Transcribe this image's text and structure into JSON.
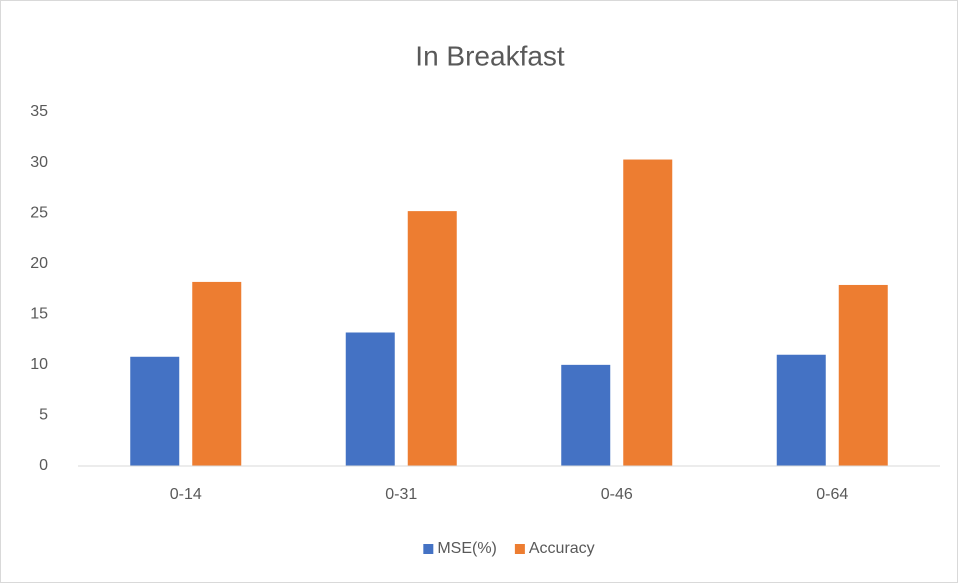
{
  "chart_data": {
    "type": "bar",
    "title": "In Breakfast",
    "categories": [
      "0-14",
      "0-31",
      "0-46",
      "0-64"
    ],
    "series": [
      {
        "name": "MSE(%)",
        "color": "#4472c4",
        "values": [
          10.8,
          13.2,
          10.0,
          11.0
        ]
      },
      {
        "name": "Accuracy",
        "color": "#ed7d31",
        "values": [
          18.2,
          25.2,
          30.3,
          17.9
        ]
      }
    ],
    "ylim": [
      0,
      35
    ],
    "yticks": [
      0,
      5,
      10,
      15,
      20,
      25,
      30,
      35
    ],
    "grid": false,
    "legend": "bottom"
  }
}
